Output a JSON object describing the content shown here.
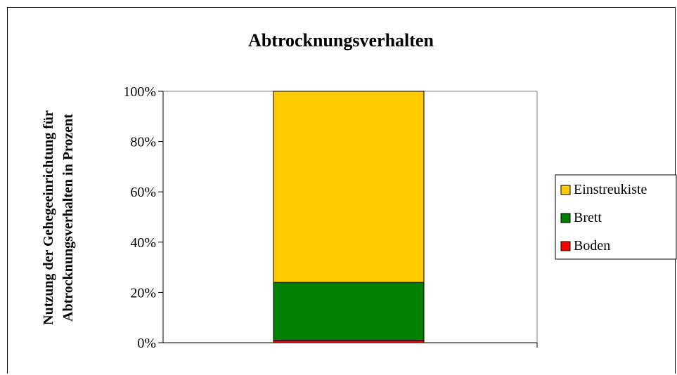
{
  "chart_data": {
    "type": "bar",
    "stacked": true,
    "title": "Abtrocknungsverhalten",
    "xlabel": "",
    "ylabel_lines": [
      "Nutzung der Gehegeeinrichtung für",
      "Abtrocknungsverhalten in Prozent"
    ],
    "categories": [
      ""
    ],
    "ylim": [
      0,
      100
    ],
    "y_ticks": [
      "0%",
      "20%",
      "40%",
      "60%",
      "80%",
      "100%"
    ],
    "y_tick_values": [
      0,
      20,
      40,
      60,
      80,
      100
    ],
    "grid": false,
    "legend_position": "right",
    "series": [
      {
        "name": "Boden",
        "values": [
          1
        ],
        "color": "#ff0000"
      },
      {
        "name": "Brett",
        "values": [
          23
        ],
        "color": "#008000"
      },
      {
        "name": "Einstreukiste",
        "values": [
          76
        ],
        "color": "#ffcc00"
      }
    ],
    "legend_order": [
      "Einstreukiste",
      "Brett",
      "Boden"
    ]
  }
}
